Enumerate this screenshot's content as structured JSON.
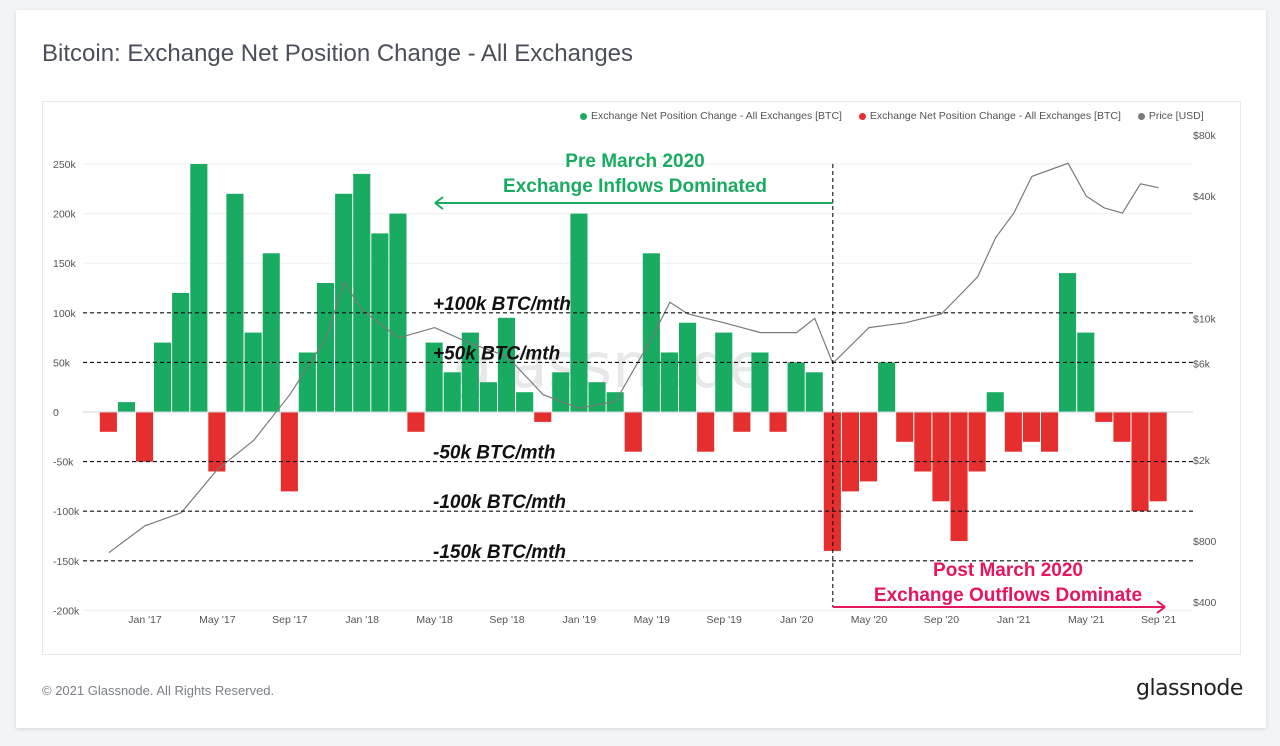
{
  "page": {
    "title": "Bitcoin: Exchange Net Position Change - All Exchanges",
    "footer": "© 2021 Glassnode. All Rights Reserved.",
    "brand": "glassnode",
    "watermark": "glassnode"
  },
  "legend": [
    {
      "label": "Exchange Net Position Change - All Exchanges [BTC]",
      "color": "#1aab62"
    },
    {
      "label": "Exchange Net Position Change - All Exchanges [BTC]",
      "color": "#e52e2e"
    },
    {
      "label": "Price [USD]",
      "color": "#7a7a7a"
    }
  ],
  "annotations": {
    "pre_title": "Pre March 2020",
    "pre_subtitle": "Exchange Inflows Dominated",
    "post_title": "Post March 2020",
    "post_subtitle": "Exchange Outflows Dominate",
    "levels": [
      {
        "value": 100000,
        "label": "+100k BTC/mth"
      },
      {
        "value": 50000,
        "label": "+50k BTC/mth"
      },
      {
        "value": -50000,
        "label": "-50k BTC/mth"
      },
      {
        "value": -100000,
        "label": "-100k BTC/mth"
      },
      {
        "value": -150000,
        "label": "-150k BTC/mth"
      }
    ],
    "divider_date": "Mar '20"
  },
  "chart_data": {
    "type": "area",
    "x_ticks": [
      "Jan '17",
      "May '17",
      "Sep '17",
      "Jan '18",
      "May '18",
      "Sep '18",
      "Jan '19",
      "May '19",
      "Sep '19",
      "Jan '20",
      "May '20",
      "Sep '20",
      "Jan '21",
      "May '21",
      "Sep '21"
    ],
    "y_left_ticks": [
      "250k",
      "200k",
      "150k",
      "100k",
      "50k",
      "0",
      "-50k",
      "-100k",
      "-150k",
      "-200k"
    ],
    "y_left_range": [
      -200000,
      250000
    ],
    "y_right_ticks": [
      "$80k",
      "$40k",
      "$10k",
      "$6k",
      "$2k",
      "$800",
      "$400"
    ],
    "y_right_scale": "log",
    "series": [
      {
        "name": "Exchange Net Position Change - All Exchanges [BTC]",
        "color_positive": "#1aab62",
        "color_negative": "#e52e2e",
        "unit": "BTC",
        "months": [
          "Nov '16",
          "Dec '16",
          "Jan '17",
          "Feb '17",
          "Mar '17",
          "Apr '17",
          "May '17",
          "Jun '17",
          "Jul '17",
          "Aug '17",
          "Sep '17",
          "Oct '17",
          "Nov '17",
          "Dec '17",
          "Jan '18",
          "Feb '18",
          "Mar '18",
          "Apr '18",
          "May '18",
          "Jun '18",
          "Jul '18",
          "Aug '18",
          "Sep '18",
          "Oct '18",
          "Nov '18",
          "Dec '18",
          "Jan '19",
          "Feb '19",
          "Mar '19",
          "Apr '19",
          "May '19",
          "Jun '19",
          "Jul '19",
          "Aug '19",
          "Sep '19",
          "Oct '19",
          "Nov '19",
          "Dec '19",
          "Jan '20",
          "Feb '20",
          "Mar '20",
          "Apr '20",
          "May '20",
          "Jun '20",
          "Jul '20",
          "Aug '20",
          "Sep '20",
          "Oct '20",
          "Nov '20",
          "Dec '20",
          "Jan '21",
          "Feb '21",
          "Mar '21",
          "Apr '21",
          "May '21",
          "Jun '21",
          "Jul '21",
          "Aug '21",
          "Sep '21"
        ],
        "values": [
          -20000,
          10000,
          -50000,
          70000,
          120000,
          250000,
          -60000,
          220000,
          80000,
          160000,
          -80000,
          60000,
          130000,
          220000,
          240000,
          180000,
          200000,
          -20000,
          70000,
          40000,
          80000,
          30000,
          95000,
          20000,
          -10000,
          40000,
          200000,
          30000,
          20000,
          -40000,
          160000,
          60000,
          90000,
          -40000,
          80000,
          -20000,
          60000,
          -20000,
          50000,
          40000,
          -140000,
          -80000,
          -70000,
          50000,
          -30000,
          -60000,
          -90000,
          -130000,
          -60000,
          20000,
          -40000,
          -30000,
          -40000,
          140000,
          80000,
          -10000,
          -30000,
          -100000,
          -90000
        ]
      },
      {
        "name": "Price [USD]",
        "color": "#7a7a7a",
        "unit": "USD",
        "months": [
          "Nov '16",
          "Jan '17",
          "Mar '17",
          "May '17",
          "Jul '17",
          "Sep '17",
          "Nov '17",
          "Dec '17",
          "Jan '18",
          "Mar '18",
          "May '18",
          "Jul '18",
          "Sep '18",
          "Nov '18",
          "Jan '19",
          "Mar '19",
          "May '19",
          "Jun '19",
          "Jul '19",
          "Sep '19",
          "Nov '19",
          "Jan '20",
          "Feb '20",
          "Mar '20",
          "May '20",
          "Jul '20",
          "Sep '20",
          "Nov '20",
          "Dec '20",
          "Jan '21",
          "Feb '21",
          "Apr '21",
          "May '21",
          "Jun '21",
          "Jul '21",
          "Aug '21",
          "Sep '21"
        ],
        "values": [
          700,
          950,
          1100,
          1800,
          2500,
          4200,
          8000,
          15000,
          11000,
          8000,
          9000,
          7500,
          6500,
          4200,
          3600,
          3900,
          8000,
          12000,
          10500,
          9500,
          8500,
          8500,
          10000,
          6000,
          9000,
          9500,
          10500,
          16000,
          25000,
          33000,
          50000,
          58000,
          40000,
          35000,
          33000,
          46000,
          44000
        ]
      }
    ]
  }
}
